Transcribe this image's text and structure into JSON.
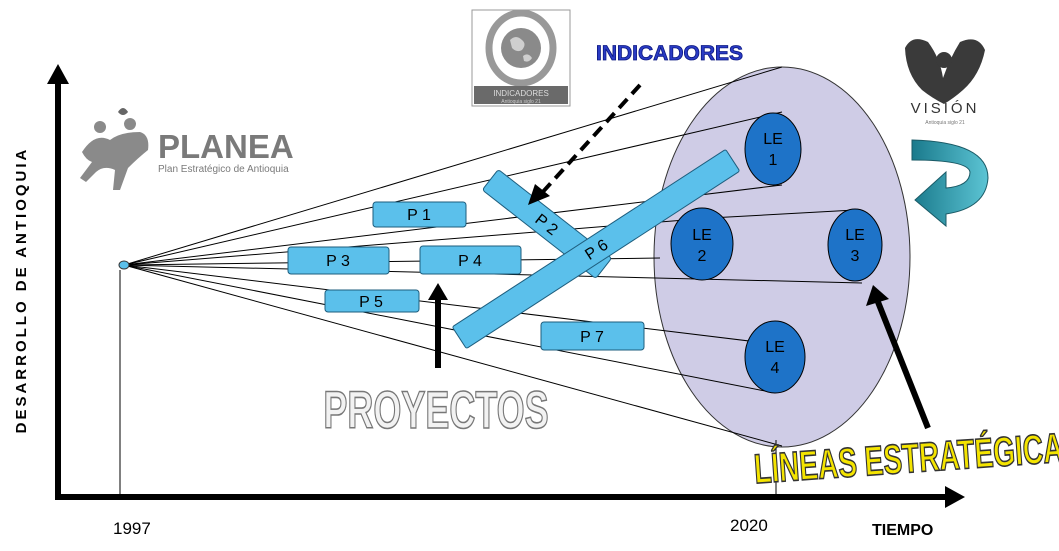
{
  "axes": {
    "y_label": "DESARROLLO DE ANTIOQUIA",
    "x_label": "TIEMPO",
    "year_start": "1997",
    "year_end": "2020"
  },
  "logos": {
    "planea_title": "PLANEA",
    "planea_subtitle": "Plan Estratégico de Antioquia",
    "indicadores_badge": "INDICADORES",
    "indicadores_sub": "Antioquia siglo 21",
    "vision_title": "VISIÓN",
    "vision_sub": "Antioquia siglo 21"
  },
  "callouts": {
    "indicadores": "INDICADORES",
    "proyectos": "PROYECTOS",
    "lineas": "LÍNEAS ESTRATÉGICAS"
  },
  "projects": [
    {
      "id": "p1",
      "label": "P 1"
    },
    {
      "id": "p2",
      "label": "P 2"
    },
    {
      "id": "p3",
      "label": "P 3"
    },
    {
      "id": "p4",
      "label": "P 4"
    },
    {
      "id": "p5",
      "label": "P 5"
    },
    {
      "id": "p6",
      "label": "P 6"
    },
    {
      "id": "p7",
      "label": "P 7"
    }
  ],
  "strategic_lines": [
    {
      "id": "le1",
      "line1": "LE",
      "line2": "1"
    },
    {
      "id": "le2",
      "line1": "LE",
      "line2": "2"
    },
    {
      "id": "le3",
      "line1": "LE",
      "line2": "3"
    },
    {
      "id": "le4",
      "line1": "LE",
      "line2": "4"
    }
  ],
  "colors": {
    "project_fill": "#5bc0eb",
    "le_fill": "#1e73c8",
    "ellipse_fill": "#cfcce6",
    "cycle_arrow": "#2a8fa0",
    "callout_blue": "#2a3bc4",
    "callout_yellow": "#f4e400"
  }
}
